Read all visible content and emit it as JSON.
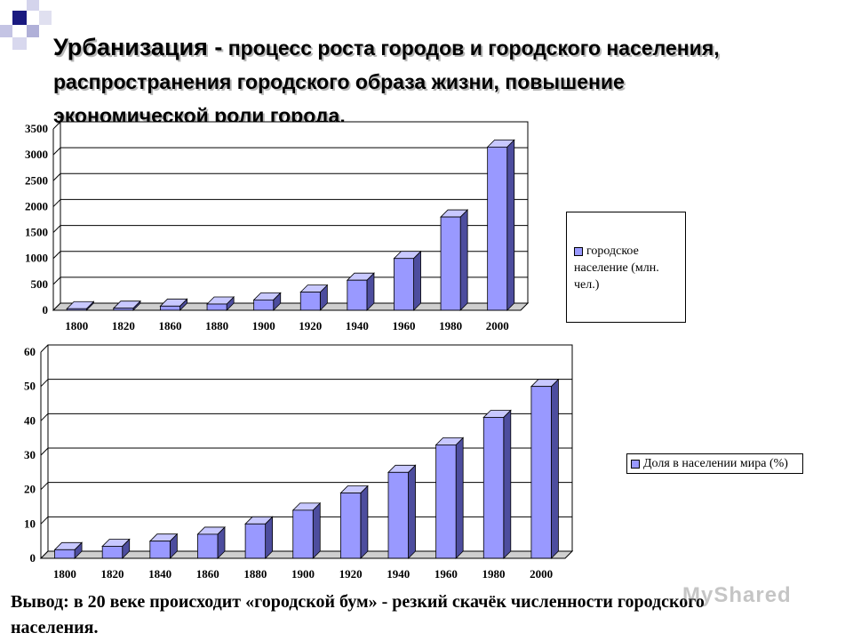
{
  "title": {
    "term": "Урбанизация -",
    "definition": " процесс роста городов и городского населения, распространения городского образа жизни, повышение экономической роли города."
  },
  "conclusion": "Вывод: в 20 веке происходит «городской бум» - резкий скачёк численности городского населения.",
  "watermark": "MyShared",
  "colors": {
    "bar_front": "#9999ff",
    "bar_side": "#4d4d9e",
    "bar_top": "#c8c8ff",
    "accent_blue": "#1a1a80"
  },
  "chart_data": [
    {
      "type": "bar",
      "categories": [
        "1800",
        "1820",
        "1860",
        "1880",
        "1900",
        "1920",
        "1940",
        "1960",
        "1980",
        "2000"
      ],
      "series": [
        {
          "name": "городское население (млн. чел.)",
          "values": [
            30,
            40,
            80,
            120,
            200,
            350,
            580,
            1000,
            1800,
            3150
          ]
        }
      ],
      "yticks": [
        "0",
        "500",
        "1000",
        "1500",
        "2000",
        "2500",
        "3000",
        "3500"
      ],
      "ylim": [
        0,
        3500
      ],
      "grid": true,
      "legend_position": "right"
    },
    {
      "type": "bar",
      "categories": [
        "1800",
        "1820",
        "1840",
        "1860",
        "1880",
        "1900",
        "1920",
        "1940",
        "1960",
        "1980",
        "2000"
      ],
      "series": [
        {
          "name": "Доля в населении мира (%)",
          "values": [
            2.5,
            3.5,
            5,
            7,
            10,
            14,
            19,
            25,
            33,
            41,
            50
          ]
        }
      ],
      "yticks": [
        "0",
        "10",
        "20",
        "30",
        "40",
        "50",
        "60"
      ],
      "ylim": [
        0,
        60
      ],
      "grid": true,
      "legend_position": "right"
    }
  ]
}
